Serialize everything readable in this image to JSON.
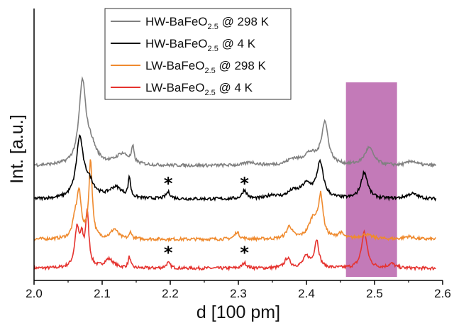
{
  "chart_data": {
    "type": "line",
    "xlabel": "d [100 pm]",
    "ylabel": "Int. [a.u.]",
    "xlim": [
      2.0,
      2.6
    ],
    "x_ticks": [
      "2.0",
      "2.1",
      "2.2",
      "2.3",
      "2.4",
      "2.5",
      "2.6"
    ],
    "y_ticks": "none",
    "grid": false,
    "legend_position": "top-center",
    "highlight_band": {
      "x_from": 2.458,
      "x_to": 2.533,
      "color": "#c37ab8"
    },
    "annotations": [
      {
        "text": "*",
        "x": 2.197,
        "series": "HW-BaFeO2.5 @ 4 K"
      },
      {
        "text": "*",
        "x": 2.309,
        "series": "HW-BaFeO2.5 @ 4 K"
      },
      {
        "text": "*",
        "x": 2.197,
        "series": "LW-BaFeO2.5 @ 4 K"
      },
      {
        "text": "*",
        "x": 2.309,
        "series": "LW-BaFeO2.5 @ 4 K"
      }
    ],
    "series": [
      {
        "name": "HW-BaFeO2.5 @ 298 K",
        "legend": {
          "prefix": "HW-BaFeO",
          "sub": "2.5",
          "suffix": " @ 298 K"
        },
        "color": "#808080",
        "offset": 2.33,
        "peaks": [
          [
            2.071,
            1.8,
            0.006
          ],
          [
            2.083,
            0.4,
            0.01
          ],
          [
            2.13,
            0.25,
            0.012
          ],
          [
            2.145,
            0.35,
            0.002
          ],
          [
            2.318,
            0.07,
            0.01
          ],
          [
            2.38,
            0.12,
            0.01
          ],
          [
            2.405,
            0.25,
            0.012
          ],
          [
            2.427,
            0.95,
            0.006
          ],
          [
            2.492,
            0.4,
            0.008
          ],
          [
            2.555,
            0.1,
            0.008
          ]
        ]
      },
      {
        "name": "HW-BaFeO2.5 @ 4 K",
        "legend": {
          "prefix": "HW-BaFeO",
          "sub": "2.5",
          "suffix": " @    4 K"
        },
        "color": "#000000",
        "offset": 1.57,
        "peaks": [
          [
            2.067,
            1.3,
            0.006
          ],
          [
            2.08,
            0.35,
            0.01
          ],
          [
            2.12,
            0.25,
            0.012
          ],
          [
            2.14,
            0.45,
            0.002
          ],
          [
            2.197,
            0.15,
            0.004
          ],
          [
            2.309,
            0.2,
            0.004
          ],
          [
            2.35,
            0.08,
            0.008
          ],
          [
            2.38,
            0.15,
            0.01
          ],
          [
            2.4,
            0.3,
            0.01
          ],
          [
            2.42,
            0.78,
            0.006
          ],
          [
            2.485,
            0.6,
            0.006
          ],
          [
            2.555,
            0.12,
            0.01
          ]
        ]
      },
      {
        "name": "LW-BaFeO2.5 @ 298 K",
        "legend": {
          "prefix": "LW-BaFeO",
          "sub": "2.5",
          "suffix": " @ 298 K"
        },
        "color": "#ef8a2e",
        "offset": 0.66,
        "peaks": [
          [
            2.066,
            1.0,
            0.004
          ],
          [
            2.06,
            0.35,
            0.004
          ],
          [
            2.083,
            1.75,
            0.003
          ],
          [
            2.118,
            0.22,
            0.006
          ],
          [
            2.142,
            0.16,
            0.002
          ],
          [
            2.298,
            0.16,
            0.004
          ],
          [
            2.375,
            0.28,
            0.005
          ],
          [
            2.41,
            0.45,
            0.008
          ],
          [
            2.421,
            0.9,
            0.004
          ],
          [
            2.45,
            0.12,
            0.005
          ],
          [
            2.487,
            0.1,
            0.01
          ],
          [
            2.55,
            0.06,
            0.008
          ]
        ]
      },
      {
        "name": "LW-BaFeO2.5 @ 4 K",
        "legend": {
          "prefix": "LW-BaFeO",
          "sub": "2.5",
          "suffix": " @    4 K"
        },
        "color": "#e5332f",
        "offset": 0.0,
        "peaks": [
          [
            2.063,
            0.85,
            0.004
          ],
          [
            2.07,
            0.55,
            0.003
          ],
          [
            2.078,
            1.2,
            0.003
          ],
          [
            2.11,
            0.2,
            0.008
          ],
          [
            2.14,
            0.25,
            0.002
          ],
          [
            2.197,
            0.12,
            0.004
          ],
          [
            2.309,
            0.12,
            0.004
          ],
          [
            2.372,
            0.22,
            0.005
          ],
          [
            2.4,
            0.25,
            0.006
          ],
          [
            2.415,
            0.62,
            0.004
          ],
          [
            2.485,
            0.82,
            0.005
          ],
          [
            2.525,
            0.1,
            0.006
          ]
        ]
      }
    ]
  }
}
